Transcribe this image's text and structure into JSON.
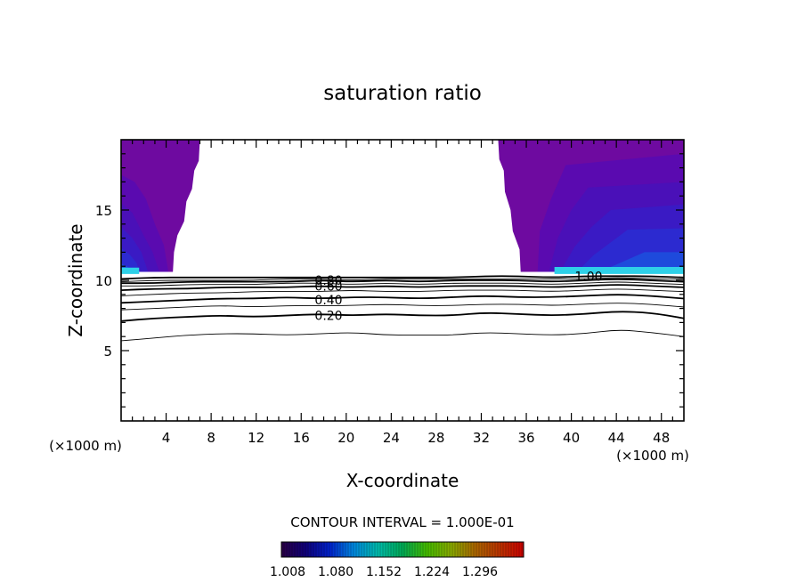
{
  "chart_data": {
    "type": "contour",
    "title": "saturation ratio",
    "xlabel": "X-coordinate",
    "ylabel": "Z-coordinate",
    "x_unit_left": "(×1000 m)",
    "x_unit_right": "(×1000 m)",
    "xlim": [
      0,
      50
    ],
    "ylim": [
      0,
      20
    ],
    "x_ticks": [
      4,
      8,
      12,
      16,
      20,
      24,
      28,
      32,
      36,
      40,
      44,
      48
    ],
    "x_tick_labels": [
      "4",
      "8",
      "12",
      "16",
      "20",
      "24",
      "28",
      "32",
      "36",
      "40",
      "44",
      "48"
    ],
    "y_ticks": [
      5,
      10,
      15
    ],
    "y_tick_labels": [
      "5",
      "10",
      "15"
    ],
    "contour_interval_text": "CONTOUR INTERVAL = 1.000E-01",
    "contour_labels": [
      {
        "text": "0.80",
        "x": 17.2,
        "y": 10.0
      },
      {
        "text": "0.60",
        "x": 17.2,
        "y": 9.6
      },
      {
        "text": "0.40",
        "x": 17.2,
        "y": 8.6
      },
      {
        "text": "0.20",
        "x": 17.2,
        "y": 7.5
      },
      {
        "text": "1.00",
        "x": 40.3,
        "y": 10.3
      }
    ],
    "contour_levels": [
      {
        "level": 0.1,
        "heavy": false,
        "z": [
          5.7,
          5.9,
          6.1,
          6.2,
          6.2,
          6.1,
          6.2,
          6.3,
          6.1,
          6.1,
          6.1,
          6.3,
          6.2,
          6.1,
          6.2,
          6.5,
          6.3,
          6.0
        ]
      },
      {
        "level": 0.2,
        "heavy": true,
        "z": [
          7.1,
          7.3,
          7.4,
          7.5,
          7.4,
          7.5,
          7.6,
          7.5,
          7.6,
          7.5,
          7.5,
          7.7,
          7.6,
          7.5,
          7.6,
          7.8,
          7.7,
          7.3
        ]
      },
      {
        "level": 0.3,
        "heavy": false,
        "z": [
          7.9,
          8.0,
          8.1,
          8.2,
          8.1,
          8.2,
          8.2,
          8.2,
          8.3,
          8.2,
          8.2,
          8.3,
          8.3,
          8.2,
          8.3,
          8.4,
          8.3,
          8.1
        ]
      },
      {
        "level": 0.4,
        "heavy": true,
        "z": [
          8.4,
          8.5,
          8.6,
          8.7,
          8.7,
          8.8,
          8.7,
          8.8,
          8.8,
          8.7,
          8.8,
          8.9,
          8.8,
          8.8,
          8.9,
          9.0,
          8.9,
          8.7
        ]
      },
      {
        "level": 0.5,
        "heavy": false,
        "z": [
          8.9,
          9.0,
          9.1,
          9.1,
          9.2,
          9.2,
          9.2,
          9.3,
          9.2,
          9.2,
          9.3,
          9.3,
          9.3,
          9.2,
          9.3,
          9.4,
          9.3,
          9.2
        ]
      },
      {
        "level": 0.6,
        "heavy": true,
        "z": [
          9.3,
          9.4,
          9.4,
          9.5,
          9.5,
          9.5,
          9.6,
          9.5,
          9.6,
          9.5,
          9.6,
          9.6,
          9.6,
          9.5,
          9.6,
          9.7,
          9.6,
          9.5
        ]
      },
      {
        "level": 0.7,
        "heavy": false,
        "z": [
          9.6,
          9.6,
          9.7,
          9.7,
          9.7,
          9.8,
          9.8,
          9.7,
          9.8,
          9.7,
          9.8,
          9.8,
          9.8,
          9.7,
          9.8,
          9.9,
          9.8,
          9.7
        ]
      },
      {
        "level": 0.8,
        "heavy": true,
        "z": [
          9.8,
          9.8,
          9.9,
          9.9,
          9.9,
          9.9,
          10.0,
          9.9,
          10.0,
          9.9,
          10.0,
          10.0,
          10.0,
          9.9,
          10.0,
          10.1,
          10.0,
          9.9
        ]
      },
      {
        "level": 0.9,
        "heavy": false,
        "z": [
          9.9,
          10.0,
          10.0,
          10.0,
          10.0,
          10.1,
          10.1,
          10.0,
          10.1,
          10.1,
          10.1,
          10.1,
          10.1,
          10.1,
          10.1,
          10.2,
          10.1,
          10.1
        ]
      },
      {
        "level": 1.0,
        "heavy": true,
        "z": [
          10.1,
          10.2,
          10.2,
          10.2,
          10.2,
          10.2,
          10.2,
          10.2,
          10.2,
          10.2,
          10.2,
          10.3,
          10.3,
          10.2,
          10.3,
          10.3,
          10.3,
          10.2
        ]
      }
    ],
    "supersaturated_regions": [
      {
        "name": "left",
        "x_range": [
          0,
          7
        ]
      },
      {
        "name": "right",
        "x_range": [
          33.5,
          50
        ]
      }
    ],
    "colorbar": {
      "tick_labels": [
        "1.008",
        "1.080",
        "1.152",
        "1.224",
        "1.296"
      ],
      "colors": [
        "#2a0044",
        "#0f007a",
        "#0022cc",
        "#0088dd",
        "#00bbaa",
        "#00aa55",
        "#44bb00",
        "#88aa00",
        "#aa6600",
        "#bb3300",
        "#cc0000"
      ]
    },
    "fill_colors": {
      "far": "#6e0aa0",
      "band1": "#5a0ab0",
      "band2": "#4a10b8",
      "band3": "#3a1ac4",
      "band4": "#2c2ad0",
      "band5": "#1e4adc",
      "edge": "#2ed0e8"
    }
  }
}
